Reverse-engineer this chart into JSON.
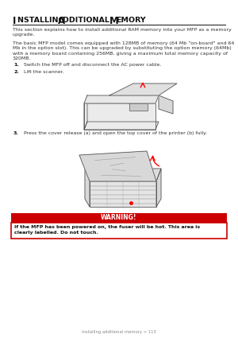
{
  "bg_color": "#ffffff",
  "title_I": "I",
  "title_rest1": "NSTALLING",
  "title_A": "A",
  "title_rest2": "DDITIONAL",
  "title_M": "M",
  "title_rest3": "EMORY",
  "para1": "This section explains how to install additional RAM memory into your MFP as a memory\nupgrade.",
  "para2": "The basic MFP model comes equipped with 128MB of memory (64 Mb \"on-board\" and 64\nMb in the option slot). This can be upgraded by substituting the option memory (64Mb)\nwith a memory board containing 256MB, giving a maximum total memory capacity of\n320MB.",
  "step1_num": "1.",
  "step1_text": "Switch the MFP off and disconnect the AC power cable.",
  "step2_num": "2.",
  "step2_text": "Lift the scanner.",
  "step3_num": "3.",
  "step3_text": "Press the cover release (a) and open the top cover of the printer (b) fully.",
  "warning_title": "WARNING!",
  "warning_text": "If the MFP has been powered on, the fuser will be hot. This area is\nclearly labelled. Do not touch.",
  "footer": "Installing additional memory > 115",
  "red": "#cc0000",
  "dark": "#222222",
  "gray_text": "#888888"
}
